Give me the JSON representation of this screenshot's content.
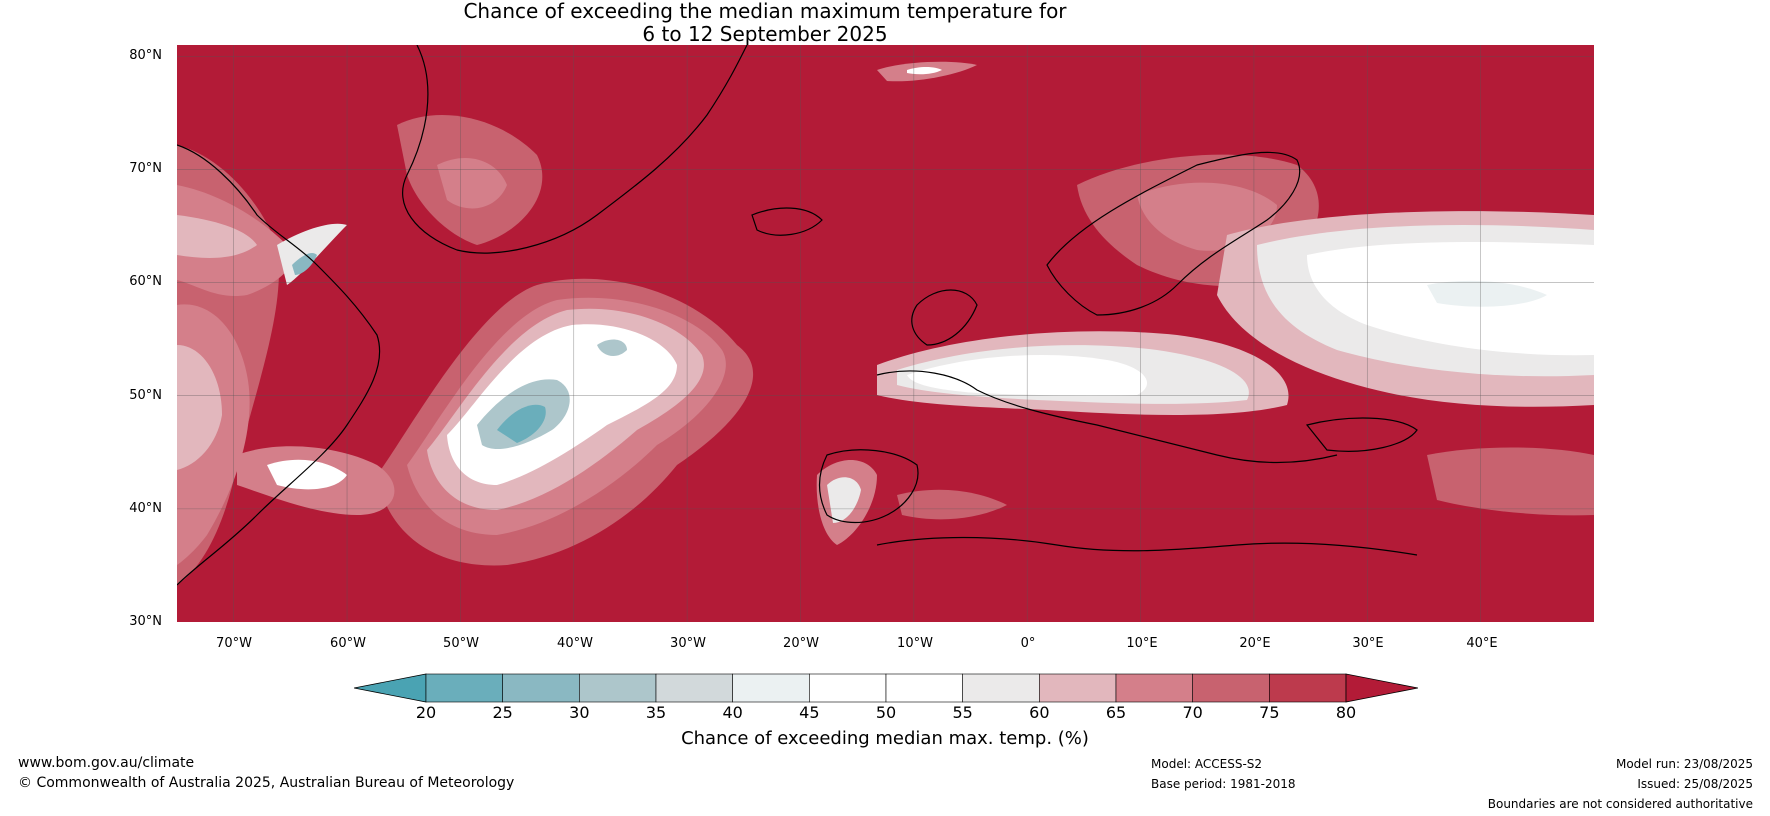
{
  "title": {
    "line1": "Chance of exceeding the median maximum temperature for",
    "line2": "6 to 12 September 2025"
  },
  "map": {
    "lat_labels": [
      "80°N",
      "70°N",
      "60°N",
      "50°N",
      "40°N",
      "30°N"
    ],
    "lon_labels": [
      "70°W",
      "60°W",
      "50°W",
      "40°W",
      "30°W",
      "20°W",
      "10°W",
      "0°",
      "10°E",
      "20°E",
      "30°E",
      "40°E"
    ],
    "extent": {
      "lon_min": -75,
      "lon_max": 50,
      "lat_min": 30,
      "lat_max": 81
    }
  },
  "colorbar": {
    "ticks": [
      "20",
      "25",
      "30",
      "35",
      "40",
      "45",
      "50",
      "55",
      "60",
      "65",
      "70",
      "75",
      "80"
    ],
    "colors": [
      "#4aa3b3",
      "#6aaebb",
      "#8ab8c2",
      "#adc6cb",
      "#d2d9db",
      "#ebf1f2",
      "#ffffff",
      "#ffffff",
      "#ebeaea",
      "#e2b7bd",
      "#d47f8a",
      "#c8626f",
      "#bd3a4d"
    ],
    "low_color": "#4aa3b3",
    "high_color": "#b31b37",
    "label": "Chance of exceeding median max. temp. (%)"
  },
  "footer": {
    "url": "www.bom.gov.au/climate",
    "copyright": "© Commonwealth of Australia 2025, Australian Bureau of Meteorology",
    "model": "Model: ACCESS-S2",
    "base_period": "Base period: 1981-2018",
    "model_run": "Model run: 23/08/2025",
    "issued": "Issued: 25/08/2025",
    "disclaimer": "Boundaries are not considered authoritative"
  }
}
